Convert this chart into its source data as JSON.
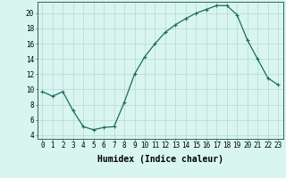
{
  "x": [
    0,
    1,
    2,
    3,
    4,
    5,
    6,
    7,
    8,
    9,
    10,
    11,
    12,
    13,
    14,
    15,
    16,
    17,
    18,
    19,
    20,
    21,
    22,
    23
  ],
  "y": [
    9.7,
    9.1,
    9.7,
    7.2,
    5.1,
    4.7,
    5.0,
    5.1,
    8.3,
    12.0,
    14.3,
    16.0,
    17.5,
    18.5,
    19.3,
    20.0,
    20.5,
    21.0,
    21.0,
    19.8,
    16.5,
    14.0,
    11.5,
    10.6
  ],
  "line_color": "#1a6b5a",
  "marker": "+",
  "marker_size": 3,
  "marker_linewidth": 0.8,
  "bg_color": "#d8f5f0",
  "grid_color": "#b8d8d4",
  "xlabel": "Humidex (Indice chaleur)",
  "ylim": [
    3.5,
    21.5
  ],
  "xlim": [
    -0.5,
    23.5
  ],
  "yticks": [
    4,
    6,
    8,
    10,
    12,
    14,
    16,
    18,
    20
  ],
  "xticks": [
    0,
    1,
    2,
    3,
    4,
    5,
    6,
    7,
    8,
    9,
    10,
    11,
    12,
    13,
    14,
    15,
    16,
    17,
    18,
    19,
    20,
    21,
    22,
    23
  ],
  "xlabel_fontsize": 7,
  "tick_fontsize": 5.5,
  "line_width": 0.9,
  "spine_color": "#336655"
}
